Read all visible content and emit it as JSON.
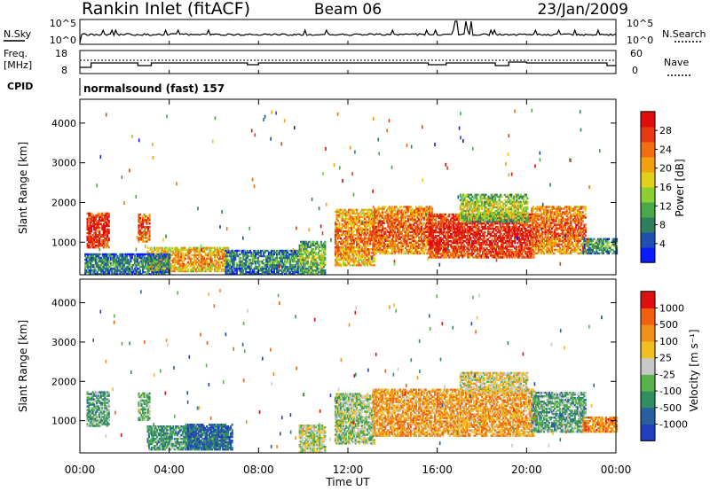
{
  "header": {
    "station": "Rankin Inlet (fitACF)",
    "beam": "Beam 06",
    "date": "23/Jan/2009"
  },
  "noise_panel": {
    "left_label": "N.Sky",
    "left_ticks": [
      "10^5",
      "10^0"
    ],
    "right_label": "N.Search",
    "right_ticks": [
      "10^5",
      "10^0"
    ]
  },
  "freq_panel": {
    "left_label_line1": "Freq.",
    "left_label_line2": "[MHz]",
    "left_ticks": [
      "18",
      "8"
    ],
    "right_label": "Nave",
    "right_ticks": [
      "60",
      "0"
    ]
  },
  "cpid": {
    "label": "CPID",
    "text": "normalsound (fast) 157"
  },
  "x_axis": {
    "label": "Time UT",
    "ticks": [
      "00:00",
      "04:00",
      "08:00",
      "12:00",
      "16:00",
      "20:00",
      "00:00"
    ]
  },
  "chart_data": [
    {
      "type": "heatmap",
      "title": "",
      "xlabel": "Time UT",
      "ylabel": "Slant Range [km]",
      "xlim": [
        0,
        24
      ],
      "ylim": [
        180,
        4600
      ],
      "y_ticks": [
        "1000",
        "2000",
        "3000",
        "4000"
      ],
      "colorbar": {
        "label": "Power [dB]",
        "range": [
          0,
          32
        ],
        "ticks": [
          "4",
          "8",
          "12",
          "16",
          "20",
          "24",
          "28"
        ],
        "colors": [
          "#0a1cff",
          "#1f4fb3",
          "#2f7f5f",
          "#4aa84a",
          "#8ccf35",
          "#e2d11c",
          "#f2a20f",
          "#f06e10",
          "#e63a12",
          "#e00d0d"
        ]
      },
      "regions": [
        {
          "t0": 0.3,
          "t1": 1.3,
          "r0": 850,
          "r1": 1750,
          "level": 0.8
        },
        {
          "t0": 2.6,
          "t1": 3.1,
          "r0": 1000,
          "r1": 1700,
          "level": 0.7
        },
        {
          "t0": 3.0,
          "t1": 6.6,
          "r0": 250,
          "r1": 850,
          "level": 0.55
        },
        {
          "t0": 0.2,
          "t1": 4.0,
          "r0": 180,
          "r1": 700,
          "level": 0.15
        },
        {
          "t0": 6.5,
          "t1": 10.0,
          "r0": 180,
          "r1": 800,
          "level": 0.15
        },
        {
          "t0": 9.8,
          "t1": 11.0,
          "r0": 180,
          "r1": 1000,
          "level": 0.3
        },
        {
          "t0": 11.4,
          "t1": 13.2,
          "r0": 400,
          "r1": 1800,
          "level": 0.6
        },
        {
          "t0": 13.1,
          "t1": 15.8,
          "r0": 700,
          "r1": 1900,
          "level": 0.65
        },
        {
          "t0": 15.6,
          "t1": 20.3,
          "r0": 600,
          "r1": 1700,
          "level": 0.8
        },
        {
          "t0": 17.0,
          "t1": 20.0,
          "r0": 1500,
          "r1": 2200,
          "level": 0.35
        },
        {
          "t0": 20.2,
          "t1": 22.6,
          "r0": 700,
          "r1": 1900,
          "level": 0.65
        },
        {
          "t0": 22.5,
          "t1": 24.0,
          "r0": 700,
          "r1": 1100,
          "level": 0.2
        }
      ]
    },
    {
      "type": "heatmap",
      "title": "",
      "xlabel": "Time UT",
      "ylabel": "Slant Range [km]",
      "xlim": [
        0,
        24
      ],
      "ylim": [
        180,
        4600
      ],
      "y_ticks": [
        "1000",
        "2000",
        "3000",
        "4000"
      ],
      "colorbar": {
        "label": "Velocity [m s⁻¹]",
        "range": [
          -1200,
          1200
        ],
        "ticks": [
          "1000",
          "500",
          "100",
          "25",
          "-25",
          "-100",
          "-500",
          "-1000"
        ],
        "colors": [
          "#1f3fbf",
          "#2a5f9f",
          "#2f8f60",
          "#59b24c",
          "#c8c8c8",
          "#f0c020",
          "#f0901a",
          "#f06010",
          "#e01010"
        ]
      },
      "regions": [
        {
          "t0": 0.3,
          "t1": 1.3,
          "r0": 850,
          "r1": 1750,
          "level": 0.35
        },
        {
          "t0": 2.6,
          "t1": 3.1,
          "r0": 1000,
          "r1": 1700,
          "level": 0.4
        },
        {
          "t0": 3.0,
          "t1": 6.6,
          "r0": 250,
          "r1": 850,
          "level": 0.3
        },
        {
          "t0": 4.8,
          "t1": 6.8,
          "r0": 250,
          "r1": 900,
          "level": 0.15
        },
        {
          "t0": 9.8,
          "t1": 11.0,
          "r0": 180,
          "r1": 900,
          "level": 0.5
        },
        {
          "t0": 11.4,
          "t1": 13.2,
          "r0": 400,
          "r1": 1700,
          "level": 0.45
        },
        {
          "t0": 13.1,
          "t1": 20.3,
          "r0": 600,
          "r1": 1800,
          "level": 0.7
        },
        {
          "t0": 17.0,
          "t1": 20.0,
          "r0": 1700,
          "r1": 2200,
          "level": 0.55
        },
        {
          "t0": 20.2,
          "t1": 22.6,
          "r0": 700,
          "r1": 1700,
          "level": 0.35
        },
        {
          "t0": 22.5,
          "t1": 24.0,
          "r0": 700,
          "r1": 1100,
          "level": 0.75
        }
      ]
    }
  ]
}
